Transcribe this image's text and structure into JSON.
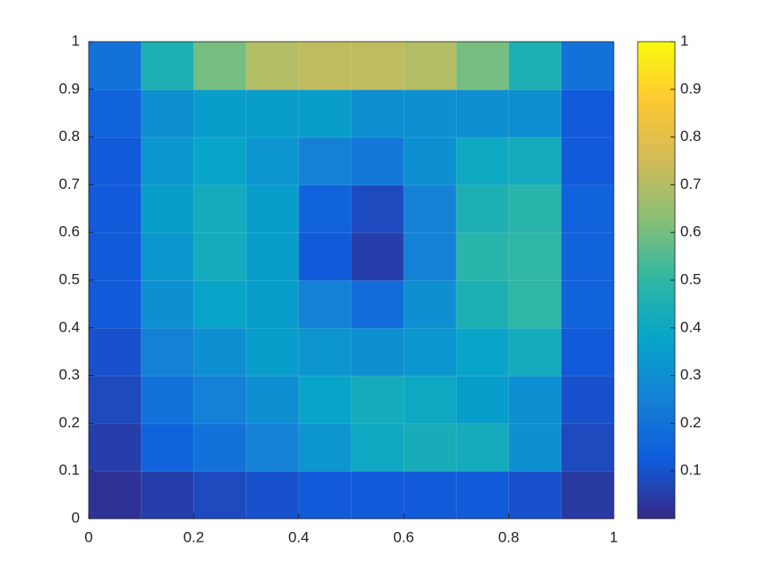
{
  "chart_data": {
    "type": "heatmap",
    "xlim": [
      0,
      1
    ],
    "ylim": [
      0,
      1
    ],
    "xticks": [
      0,
      0.2,
      0.4,
      0.6,
      0.8,
      1
    ],
    "yticks": [
      0,
      0.1,
      0.2,
      0.3,
      0.4,
      0.5,
      0.6,
      0.7,
      0.8,
      0.9,
      1
    ],
    "z": [
      [
        0.02,
        0.05,
        0.08,
        0.1,
        0.12,
        0.12,
        0.12,
        0.12,
        0.1,
        0.04
      ],
      [
        0.05,
        0.15,
        0.2,
        0.25,
        0.32,
        0.4,
        0.43,
        0.42,
        0.3,
        0.08
      ],
      [
        0.08,
        0.2,
        0.25,
        0.3,
        0.38,
        0.42,
        0.4,
        0.35,
        0.3,
        0.1
      ],
      [
        0.1,
        0.25,
        0.3,
        0.35,
        0.32,
        0.3,
        0.32,
        0.38,
        0.42,
        0.12
      ],
      [
        0.12,
        0.3,
        0.38,
        0.35,
        0.25,
        0.18,
        0.3,
        0.45,
        0.5,
        0.15
      ],
      [
        0.12,
        0.33,
        0.42,
        0.35,
        0.12,
        0.05,
        0.25,
        0.48,
        0.5,
        0.15
      ],
      [
        0.12,
        0.35,
        0.42,
        0.35,
        0.15,
        0.08,
        0.25,
        0.45,
        0.48,
        0.15
      ],
      [
        0.12,
        0.33,
        0.38,
        0.32,
        0.25,
        0.22,
        0.3,
        0.4,
        0.42,
        0.12
      ],
      [
        0.15,
        0.3,
        0.35,
        0.35,
        0.35,
        0.3,
        0.3,
        0.3,
        0.3,
        0.12
      ],
      [
        0.2,
        0.45,
        0.6,
        0.7,
        0.72,
        0.72,
        0.7,
        0.6,
        0.45,
        0.2
      ]
    ],
    "clim": [
      0,
      1
    ],
    "cticks": [
      0.1,
      0.2,
      0.3,
      0.4,
      0.5,
      0.6,
      0.7,
      0.8,
      0.9,
      1
    ],
    "colormap": [
      "#352a87",
      "#0f5cdd",
      "#1481d6",
      "#06a4ca",
      "#2eb7a4",
      "#87bf77",
      "#d1bb59",
      "#fec832",
      "#f9fb0e"
    ]
  }
}
